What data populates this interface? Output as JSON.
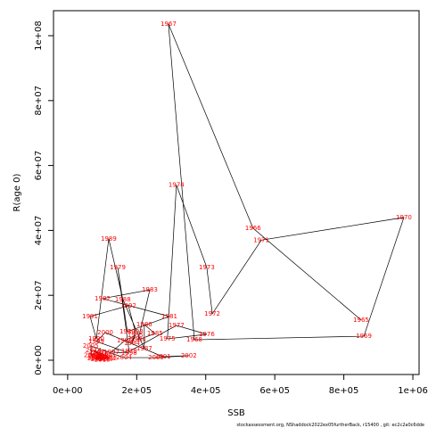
{
  "chart_data": {
    "type": "scatter",
    "xlabel": "SSB",
    "ylabel": "R(age 0)",
    "footer": "stockassessment.org, NShaddock2022ex05furtherBack, r15400 , git: ec2c2a0c6dde",
    "point_labels": [
      "1965",
      "1966",
      "1967",
      "1968",
      "1969",
      "1970",
      "1971",
      "1972",
      "1973",
      "1974",
      "1975",
      "1976",
      "1977",
      "1978",
      "1979",
      "1980",
      "1981",
      "1982",
      "1983",
      "1984",
      "1985",
      "1986",
      "1987",
      "1988",
      "1989",
      "1990",
      "1991",
      "1992",
      "1993",
      "1994",
      "1995",
      "1996",
      "1997",
      "1998",
      "1999",
      "2000",
      "2001",
      "2002",
      "2003",
      "2004",
      "2005",
      "2006",
      "2007",
      "2008",
      "2009",
      "2010",
      "2011",
      "2012",
      "2013",
      "2014",
      "2015",
      "2016",
      "2017",
      "2018",
      "2019",
      "2020",
      "2021"
    ],
    "x": [
      850000,
      537000,
      292000,
      367000,
      858000,
      974000,
      561000,
      419000,
      403000,
      315000,
      289000,
      403000,
      315000,
      178000,
      145000,
      173000,
      295000,
      101000,
      238000,
      204000,
      253000,
      222000,
      222000,
      160000,
      119000,
      83000,
      65000,
      176000,
      196000,
      186000,
      196000,
      165000,
      127000,
      178000,
      83000,
      109000,
      276000,
      351000,
      256000,
      163000,
      67000,
      70000,
      85000,
      95000,
      80000,
      100000,
      90000,
      120000,
      105000,
      75000,
      110000,
      95000,
      85000,
      100000,
      115000,
      90000,
      80000
    ],
    "y": [
      12400000,
      40700000,
      103600000,
      6300000,
      7400000,
      44000000,
      37000000,
      14300000,
      28600000,
      54000000,
      6600000,
      8000000,
      10700000,
      2700000,
      28600000,
      8800000,
      13500000,
      19000000,
      21700000,
      6300000,
      8200000,
      11000000,
      3600000,
      18700000,
      37400000,
      6600000,
      13500000,
      16800000,
      8800000,
      5200000,
      7700000,
      6000000,
      2500000,
      2200000,
      5800000,
      8500000,
      1100000,
      1400000,
      800000,
      800000,
      4400000,
      1500000,
      2500000,
      1200000,
      500000,
      800000,
      300000,
      600000,
      1800000,
      3000000,
      400000,
      2000000,
      900000,
      200000,
      1000000,
      700000,
      1300000
    ],
    "line_color": "#000000",
    "label_color": "#ff0000",
    "xlim": [
      -41000,
      1018000
    ],
    "ylim": [
      -4400000,
      107700000
    ],
    "xticks": [
      {
        "value": 0,
        "label": "0e+00"
      },
      {
        "value": 200000,
        "label": "2e+05"
      },
      {
        "value": 400000,
        "label": "4e+05"
      },
      {
        "value": 600000,
        "label": "6e+05"
      },
      {
        "value": 800000,
        "label": "8e+05"
      },
      {
        "value": 1000000,
        "label": "1e+06"
      }
    ],
    "yticks": [
      {
        "value": 0,
        "label": "0e+00"
      },
      {
        "value": 20000000,
        "label": "2e+07"
      },
      {
        "value": 40000000,
        "label": "4e+07"
      },
      {
        "value": 60000000,
        "label": "6e+07"
      },
      {
        "value": 80000000,
        "label": "8e+07"
      },
      {
        "value": 100000000,
        "label": "1e+08"
      }
    ]
  }
}
